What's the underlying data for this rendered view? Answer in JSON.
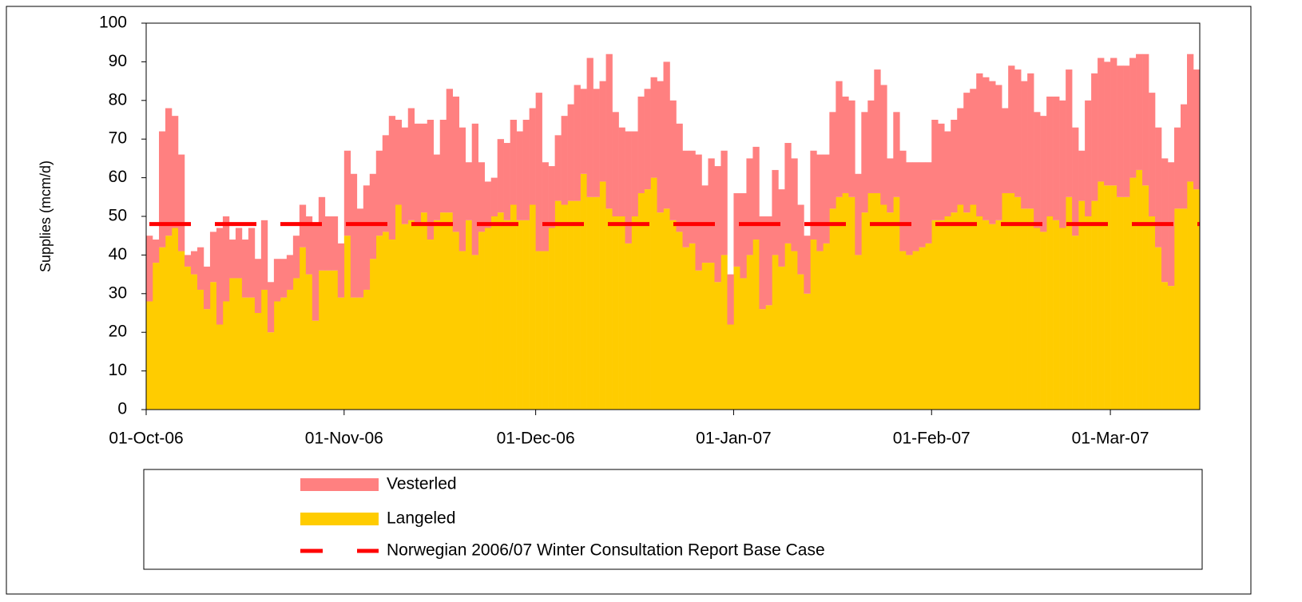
{
  "chart_data": {
    "type": "stacked-bar",
    "y_label": "Supplies (mcm/d)",
    "x": [
      "2006-10-01",
      "2006-10-02",
      "2006-10-03",
      "2006-10-04",
      "2006-10-05",
      "2006-10-06",
      "2006-10-07",
      "2006-10-08",
      "2006-10-09",
      "2006-10-10",
      "2006-10-11",
      "2006-10-12",
      "2006-10-13",
      "2006-10-14",
      "2006-10-15",
      "2006-10-16",
      "2006-10-17",
      "2006-10-18",
      "2006-10-19",
      "2006-10-20",
      "2006-10-21",
      "2006-10-22",
      "2006-10-23",
      "2006-10-24",
      "2006-10-25",
      "2006-10-26",
      "2006-10-27",
      "2006-10-28",
      "2006-10-29",
      "2006-10-30",
      "2006-10-31",
      "2006-11-01",
      "2006-11-02",
      "2006-11-03",
      "2006-11-04",
      "2006-11-05",
      "2006-11-06",
      "2006-11-07",
      "2006-11-08",
      "2006-11-09",
      "2006-11-10",
      "2006-11-11",
      "2006-11-12",
      "2006-11-13",
      "2006-11-14",
      "2006-11-15",
      "2006-11-16",
      "2006-11-17",
      "2006-11-18",
      "2006-11-19",
      "2006-11-20",
      "2006-11-21",
      "2006-11-22",
      "2006-11-23",
      "2006-11-24",
      "2006-11-25",
      "2006-11-26",
      "2006-11-27",
      "2006-11-28",
      "2006-11-29",
      "2006-11-30",
      "2006-12-01",
      "2006-12-02",
      "2006-12-03",
      "2006-12-04",
      "2006-12-05",
      "2006-12-06",
      "2006-12-07",
      "2006-12-08",
      "2006-12-09",
      "2006-12-10",
      "2006-12-11",
      "2006-12-12",
      "2006-12-13",
      "2006-12-14",
      "2006-12-15",
      "2006-12-16",
      "2006-12-17",
      "2006-12-18",
      "2006-12-19",
      "2006-12-20",
      "2006-12-21",
      "2006-12-22",
      "2006-12-23",
      "2006-12-24",
      "2006-12-25",
      "2006-12-26",
      "2006-12-27",
      "2006-12-28",
      "2006-12-29",
      "2006-12-30",
      "2006-12-31",
      "2007-01-01",
      "2007-01-02",
      "2007-01-03",
      "2007-01-04",
      "2007-01-05",
      "2007-01-06",
      "2007-01-07",
      "2007-01-08",
      "2007-01-09",
      "2007-01-10",
      "2007-01-11",
      "2007-01-12",
      "2007-01-13",
      "2007-01-14",
      "2007-01-15",
      "2007-01-16",
      "2007-01-17",
      "2007-01-18",
      "2007-01-19",
      "2007-01-20",
      "2007-01-21",
      "2007-01-22",
      "2007-01-23",
      "2007-01-24",
      "2007-01-25",
      "2007-01-26",
      "2007-01-27",
      "2007-01-28",
      "2007-01-29",
      "2007-01-30",
      "2007-01-31",
      "2007-02-01",
      "2007-02-02",
      "2007-02-03",
      "2007-02-04",
      "2007-02-05",
      "2007-02-06",
      "2007-02-07",
      "2007-02-08",
      "2007-02-09",
      "2007-02-10",
      "2007-02-11",
      "2007-02-12",
      "2007-02-13",
      "2007-02-14",
      "2007-02-15",
      "2007-02-16",
      "2007-02-17",
      "2007-02-18",
      "2007-02-19",
      "2007-02-20",
      "2007-02-21",
      "2007-02-22",
      "2007-02-23",
      "2007-02-24",
      "2007-02-25",
      "2007-02-26",
      "2007-02-27",
      "2007-02-28",
      "2007-03-01",
      "2007-03-02",
      "2007-03-03",
      "2007-03-04",
      "2007-03-05",
      "2007-03-06",
      "2007-03-07",
      "2007-03-08",
      "2007-03-09",
      "2007-03-10",
      "2007-03-11",
      "2007-03-12",
      "2007-03-13",
      "2007-03-14"
    ],
    "series": [
      {
        "name": "Vesterled",
        "color": "#ff8080",
        "values": [
          17,
          6,
          30,
          33,
          29,
          25,
          3,
          6,
          11,
          11,
          13,
          25,
          22,
          10,
          13,
          15,
          18,
          14,
          18,
          13,
          11,
          10,
          9,
          11,
          11,
          15,
          25,
          19,
          14,
          14,
          14,
          22,
          32,
          23,
          27,
          22,
          22,
          25,
          32,
          22,
          25,
          29,
          26,
          23,
          31,
          17,
          24,
          32,
          35,
          32,
          15,
          34,
          18,
          12,
          10,
          19,
          20,
          22,
          23,
          26,
          25,
          41,
          23,
          16,
          17,
          23,
          25,
          30,
          22,
          36,
          28,
          26,
          40,
          27,
          23,
          29,
          22,
          25,
          26,
          26,
          34,
          38,
          31,
          28,
          25,
          24,
          30,
          20,
          27,
          30,
          27,
          13,
          19,
          22,
          25,
          24,
          24,
          23,
          22,
          20,
          26,
          24,
          18,
          15,
          23,
          25,
          23,
          25,
          30,
          25,
          25,
          21,
          26,
          24,
          32,
          31,
          14,
          22,
          26,
          24,
          23,
          22,
          21,
          26,
          25,
          22,
          24,
          25,
          31,
          30,
          37,
          37,
          37,
          35,
          22,
          33,
          33,
          33,
          35,
          30,
          30,
          31,
          32,
          33,
          33,
          28,
          13,
          30,
          33,
          32,
          32,
          33,
          34,
          34,
          31,
          30,
          34,
          32,
          31,
          32,
          32,
          21,
          27,
          33,
          31
        ]
      },
      {
        "name": "Langeled",
        "color": "#ffcc00",
        "values": [
          28,
          38,
          42,
          45,
          47,
          41,
          37,
          35,
          31,
          26,
          33,
          22,
          28,
          34,
          34,
          29,
          29,
          25,
          31,
          20,
          28,
          29,
          31,
          34,
          42,
          35,
          23,
          36,
          36,
          36,
          29,
          45,
          29,
          29,
          31,
          39,
          45,
          46,
          44,
          53,
          48,
          49,
          48,
          51,
          44,
          49,
          51,
          51,
          46,
          41,
          49,
          40,
          46,
          47,
          50,
          51,
          49,
          53,
          49,
          49,
          53,
          41,
          41,
          47,
          54,
          53,
          54,
          54,
          61,
          55,
          55,
          59,
          52,
          50,
          50,
          43,
          50,
          56,
          57,
          60,
          51,
          52,
          49,
          46,
          42,
          43,
          36,
          38,
          38,
          33,
          40,
          22,
          37,
          34,
          40,
          44,
          26,
          27,
          40,
          37,
          43,
          41,
          35,
          30,
          44,
          41,
          43,
          52,
          55,
          56,
          55,
          40,
          51,
          56,
          56,
          53,
          51,
          55,
          41,
          40,
          41,
          42,
          43,
          49,
          49,
          50,
          51,
          53,
          51,
          53,
          50,
          49,
          48,
          49,
          56,
          56,
          55,
          52,
          52,
          47,
          46,
          50,
          49,
          47,
          55,
          45,
          54,
          50,
          54,
          59,
          58,
          58,
          55,
          55,
          60,
          62,
          58,
          50,
          42,
          33,
          32,
          52,
          52,
          59,
          57
        ]
      }
    ],
    "reference_line": {
      "name": "Norwegian 2006/07 Winter Consultation Report Base Case",
      "value": 48,
      "color": "#ff0000",
      "dashed": true
    },
    "xlim": [
      "2006-10-01",
      "2007-03-15"
    ],
    "xticks": [
      {
        "value": "2006-10-01",
        "label": "01-Oct-06"
      },
      {
        "value": "2006-11-01",
        "label": "01-Nov-06"
      },
      {
        "value": "2006-12-01",
        "label": "01-Dec-06"
      },
      {
        "value": "2007-01-01",
        "label": "01-Jan-07"
      },
      {
        "value": "2007-02-01",
        "label": "01-Feb-07"
      },
      {
        "value": "2007-03-01",
        "label": "01-Mar-07"
      }
    ],
    "ylim": [
      0,
      100
    ],
    "yticks": [
      0,
      10,
      20,
      30,
      40,
      50,
      60,
      70,
      80,
      90,
      100
    ],
    "grid": false,
    "legend": "bottom"
  }
}
